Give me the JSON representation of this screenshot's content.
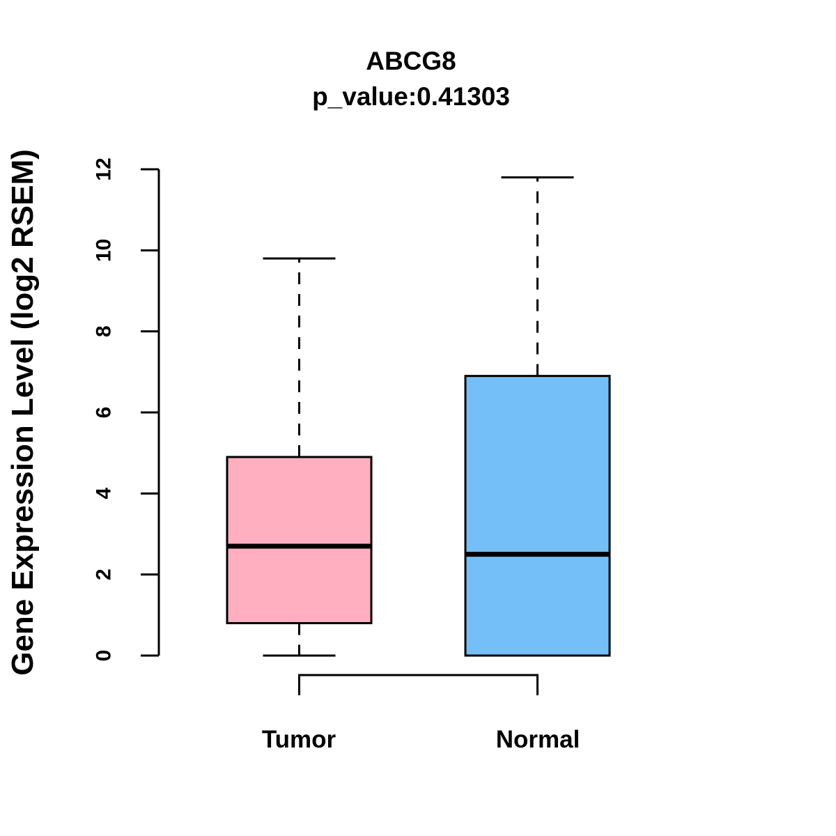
{
  "chart_data": {
    "type": "boxplot",
    "title": "ABCG8",
    "subtitle": "p_value:0.41303",
    "xlabel": "",
    "ylabel": "Gene Expression Level (log2 RSEM)",
    "ylim": [
      0,
      12
    ],
    "yticks": [
      0,
      2,
      4,
      6,
      8,
      10,
      12
    ],
    "categories": [
      "Tumor",
      "Normal"
    ],
    "grid": false,
    "legend_position": "none",
    "line_color": "#000000",
    "background_color": "#ffffff",
    "series": [
      {
        "name": "Tumor",
        "fill_color": "#FFAFC0",
        "stroke_color": "#000000",
        "min": 0.0,
        "q1": 0.8,
        "median": 2.7,
        "q3": 4.9,
        "max": 9.8
      },
      {
        "name": "Normal",
        "fill_color": "#74BFF8",
        "stroke_color": "#000000",
        "min": 0.0,
        "q1": 0.0,
        "median": 2.5,
        "q3": 6.9,
        "max": 11.8
      }
    ]
  }
}
